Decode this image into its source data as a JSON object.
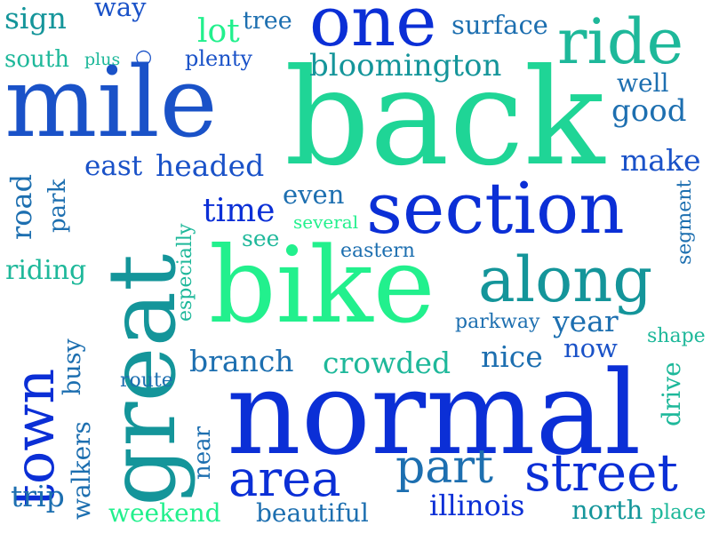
{
  "palette": {
    "deep_blue": "#0b2fd6",
    "royal_blue": "#1a52c8",
    "steel_blue": "#1d6fb0",
    "teal": "#14959a",
    "sea_green": "#1eb89a",
    "mint": "#1fd596",
    "bright_green": "#22f08d"
  },
  "words": {
    "back": "back",
    "normal": "normal",
    "mile": "mile",
    "bike": "bike",
    "great": "great",
    "section": "section",
    "one": "one",
    "ride": "ride",
    "along": "along",
    "town": "town",
    "street": "street",
    "area": "area",
    "part": "part",
    "bloomington": "bloomington",
    "surface": "surface",
    "good": "good",
    "make": "make",
    "time": "time",
    "headed": "headed",
    "east": "east",
    "branch": "branch",
    "crowded": "crowded",
    "nice": "nice",
    "year": "year",
    "now": "now",
    "parkway": "parkway",
    "illinois": "illinois",
    "north": "north",
    "beautiful": "beautiful",
    "weekend": "weekend",
    "trip": "trip",
    "walkers": "walkers",
    "near": "near",
    "route": "route",
    "busy": "busy",
    "riding": "riding",
    "road": "road",
    "park": "park",
    "especially": "especially",
    "even": "even",
    "several": "several",
    "see": "see",
    "eastern": "eastern",
    "shape": "shape",
    "drive": "drive",
    "segment": "segment",
    "place": "place",
    "sign": "sign",
    "way": "way",
    "south": "south",
    "plus": "plus",
    "lot": "lot",
    "tree": "tree",
    "plenty": "plenty",
    "well": "well"
  }
}
